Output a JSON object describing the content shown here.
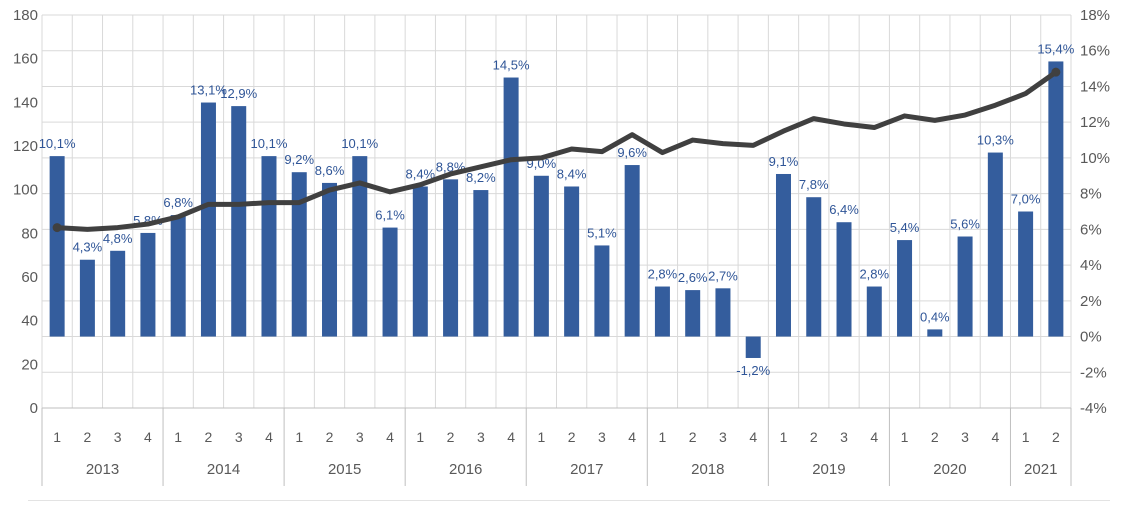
{
  "chart_data": {
    "type": "bar",
    "subtype": "combo-bar-line",
    "title": "",
    "xlabel": "",
    "ylabel": "",
    "legend_position": "none",
    "grid": true,
    "left_axis_ticks": [
      "180",
      "160",
      "140",
      "120",
      "100",
      "80",
      "60",
      "40",
      "20",
      "0"
    ],
    "right_axis_ticks": [
      "18%",
      "16%",
      "14%",
      "12%",
      "10%",
      "8%",
      "6%",
      "4%",
      "2%",
      "0%",
      "-2%",
      "-4%"
    ],
    "ylim_right": [
      -4,
      18
    ],
    "ylim_left": [
      0,
      180
    ],
    "categories": [
      {
        "year": "2013",
        "quarters": [
          "1",
          "2",
          "3",
          "4"
        ]
      },
      {
        "year": "2014",
        "quarters": [
          "1",
          "2",
          "3",
          "4"
        ]
      },
      {
        "year": "2015",
        "quarters": [
          "1",
          "2",
          "3",
          "4"
        ]
      },
      {
        "year": "2016",
        "quarters": [
          "1",
          "2",
          "3",
          "4"
        ]
      },
      {
        "year": "2017",
        "quarters": [
          "1",
          "2",
          "3",
          "4"
        ]
      },
      {
        "year": "2018",
        "quarters": [
          "1",
          "2",
          "3",
          "4"
        ]
      },
      {
        "year": "2019",
        "quarters": [
          "1",
          "2",
          "3",
          "4"
        ]
      },
      {
        "year": "2020",
        "quarters": [
          "1",
          "2",
          "3",
          "4"
        ]
      },
      {
        "year": "2021",
        "quarters": [
          "1",
          "2"
        ]
      }
    ],
    "series": [
      {
        "name": "bars",
        "type": "bar",
        "axis": "right",
        "values": [
          10.1,
          4.3,
          4.8,
          5.8,
          6.8,
          13.1,
          12.9,
          10.1,
          9.2,
          8.6,
          10.1,
          6.1,
          8.4,
          8.8,
          8.2,
          14.5,
          9.0,
          8.4,
          5.1,
          9.6,
          2.8,
          2.6,
          2.7,
          -1.2,
          9.1,
          7.8,
          6.4,
          2.8,
          5.4,
          0.4,
          5.6,
          10.3,
          7.0,
          15.4
        ],
        "data_labels": [
          "10,1%",
          "4,3%",
          "4,8%",
          "5,8%",
          "6,8%",
          "13,1%",
          "12,9%",
          "10,1%",
          "9,2%",
          "8,6%",
          "10,1%",
          "6,1%",
          "8,4%",
          "8,8%",
          "8,2%",
          "14,5%",
          "9,0%",
          "8,4%",
          "5,1%",
          "9,6%",
          "2,8%",
          "2,6%",
          "2,7%",
          "-1,2%",
          "9,1%",
          "7,8%",
          "6,4%",
          "2,8%",
          "5,4%",
          "0,4%",
          "5,6%",
          "10,3%",
          "7,0%",
          "15,4%"
        ]
      },
      {
        "name": "line",
        "type": "line",
        "axis": "right",
        "values": [
          6.1,
          6.0,
          6.1,
          6.3,
          6.7,
          7.4,
          7.4,
          7.5,
          7.5,
          8.2,
          8.6,
          8.1,
          8.5,
          9.1,
          9.5,
          9.9,
          10.0,
          10.5,
          10.35,
          11.3,
          10.3,
          11.0,
          10.8,
          10.7,
          11.5,
          12.2,
          11.9,
          11.7,
          12.35,
          12.1,
          12.4,
          12.95,
          13.6,
          14.8
        ]
      }
    ],
    "colors": {
      "bar": "#345d9d",
      "bar_label": "#2f5597",
      "line": "#404040",
      "grid": "#d9d9d9",
      "axis_line": "#bfbfbf",
      "tick_text": "#595959",
      "sheet_line": "#e3e3e3"
    }
  }
}
